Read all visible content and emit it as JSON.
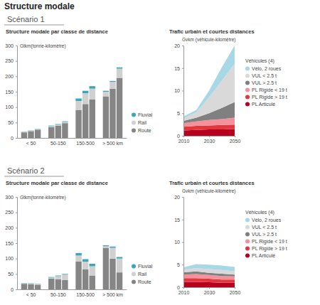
{
  "page": {
    "title": "Structure modale",
    "sections": [
      "Scénario 1",
      "Scénario 2"
    ]
  },
  "chart_data": [
    {
      "type": "bar",
      "title": "Structure modale par classe de distance",
      "y_label": "Gtkm(tonne-kilomètre)",
      "stacked": true,
      "grid": false,
      "legend": "right",
      "categories": [
        "< 50",
        "50-150",
        "150-500",
        "> 500 km"
      ],
      "series": [
        {
          "name": "Fluvial",
          "color": "#3aa6b9",
          "values": [
            [
              1,
              1,
              1
            ],
            [
              2,
              2,
              2
            ],
            [
              8,
              8,
              8
            ],
            [
              3,
              3,
              4
            ]
          ]
        },
        {
          "name": "Rail",
          "color": "#d0d0d0",
          "values": [
            [
              1,
              1,
              1
            ],
            [
              3,
              3,
              4
            ],
            [
              30,
              35,
              35
            ],
            [
              15,
              22,
              30
            ]
          ]
        },
        {
          "name": "Route",
          "color": "#858585",
          "values": [
            [
              18,
              22,
              27
            ],
            [
              35,
              40,
              48
            ],
            [
              90,
              110,
              125
            ],
            [
              135,
              160,
              195
            ]
          ]
        }
      ],
      "ylim": [
        0,
        300
      ],
      "yticks": [
        0,
        50,
        100,
        150,
        200,
        250,
        300
      ]
    },
    {
      "type": "area",
      "title": "Trafic urbain et courtes distances",
      "y_label": "Gvkm (véhicule-kilomètre)",
      "legend_title": "Véhicules (4)",
      "stacked": true,
      "grid": false,
      "legend": "right",
      "x": [
        2010,
        2020,
        2030,
        2040,
        2050
      ],
      "xlim": [
        2010,
        2050
      ],
      "xticks": [
        2010,
        2030,
        2050
      ],
      "ylim": [
        0,
        20
      ],
      "yticks": [
        0,
        5,
        10,
        15,
        20
      ],
      "series": [
        {
          "name": "Vélo, 2 roues",
          "color": "#a8d8e6",
          "values": [
            0.5,
            0.5,
            1.5,
            3,
            4
          ]
        },
        {
          "name": "VUL < 2.5 t",
          "color": "#d9d9d9",
          "values": [
            0.5,
            1.2,
            3.5,
            6,
            8.5
          ]
        },
        {
          "name": "VUL > 2.5 t",
          "color": "#808080",
          "values": [
            0.5,
            0.8,
            1.5,
            2.5,
            3.5
          ]
        },
        {
          "name": "PL Rigide < 19 t",
          "color": "#f4919b",
          "values": [
            0.8,
            1.0,
            1.2,
            1.3,
            1.5
          ]
        },
        {
          "name": "PL Rigide > 19 t",
          "color": "#e2373f",
          "values": [
            0.8,
            0.9,
            0.9,
            1.0,
            1.0
          ]
        },
        {
          "name": "PL Articulé",
          "color": "#b5001f",
          "values": [
            1.2,
            1.3,
            1.4,
            1.4,
            1.5
          ]
        }
      ]
    },
    {
      "type": "bar",
      "title": "Structure modale par classe de distance",
      "y_label": "Gtkm(tonne-kilomètre)",
      "stacked": true,
      "grid": false,
      "legend": "right",
      "categories": [
        "< 50",
        "50-150",
        "150-500",
        "> 500 km"
      ],
      "series": [
        {
          "name": "Fluvial",
          "color": "#3aa6b9",
          "values": [
            [
              1,
              1,
              1
            ],
            [
              2,
              2,
              2
            ],
            [
              8,
              8,
              8
            ],
            [
              3,
              4,
              5
            ]
          ]
        },
        {
          "name": "Rail",
          "color": "#d0d0d0",
          "values": [
            [
              1,
              2,
              2
            ],
            [
              3,
              10,
              18
            ],
            [
              20,
              25,
              30
            ],
            [
              5,
              35,
              45
            ]
          ]
        },
        {
          "name": "Route",
          "color": "#858585",
          "values": [
            [
              18,
              17,
              15
            ],
            [
              35,
              33,
              30
            ],
            [
              90,
              65,
              45
            ],
            [
              135,
              100,
              55
            ]
          ]
        }
      ],
      "ylim": [
        0,
        300
      ],
      "yticks": [
        0,
        50,
        100,
        150,
        200,
        250,
        300
      ]
    },
    {
      "type": "area",
      "title": "Trafic urbain et courtes distances",
      "y_label": "Gvkm (véhicule-kilomètre)",
      "legend_title": "Véhicules (4)",
      "stacked": true,
      "grid": false,
      "legend": "right",
      "x": [
        2010,
        2020,
        2030,
        2040,
        2050
      ],
      "xlim": [
        2010,
        2050
      ],
      "xticks": [
        2010,
        2030,
        2050
      ],
      "ylim": [
        0,
        20
      ],
      "yticks": [
        0,
        5,
        10,
        15,
        20
      ],
      "series": [
        {
          "name": "Vélo, 2 roues",
          "color": "#a8d8e6",
          "values": [
            0.5,
            0.9,
            1.0,
            1.0,
            1.0
          ]
        },
        {
          "name": "VUL < 2.5 t",
          "color": "#d9d9d9",
          "values": [
            0.6,
            0.7,
            0.8,
            0.8,
            0.7
          ]
        },
        {
          "name": "VUL > 2.5 t",
          "color": "#808080",
          "values": [
            0.5,
            0.6,
            0.5,
            0.5,
            0.4
          ]
        },
        {
          "name": "PL Rigide < 19 t",
          "color": "#f4919b",
          "values": [
            0.8,
            0.9,
            0.8,
            0.8,
            0.7
          ]
        },
        {
          "name": "PL Rigide > 19 t",
          "color": "#e2373f",
          "values": [
            0.8,
            0.8,
            0.8,
            0.7,
            0.7
          ]
        },
        {
          "name": "PL Articulé",
          "color": "#b5001f",
          "values": [
            1.2,
            1.2,
            1.1,
            1.0,
            1.0
          ]
        }
      ]
    }
  ]
}
